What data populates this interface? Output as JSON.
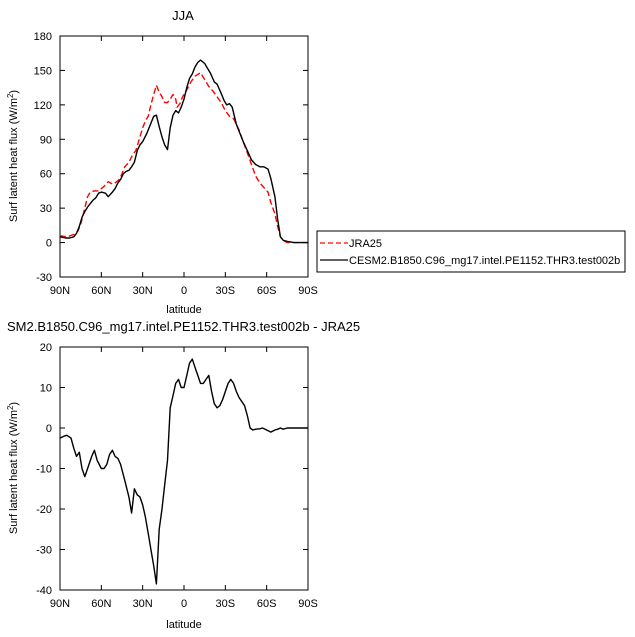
{
  "chart_data": [
    {
      "type": "line",
      "title": "JJA",
      "xlabel": "latitude",
      "ylabel_main": "Surf latent heat flux (W/m",
      "ylabel_sup": "2",
      "ylabel_close": ")",
      "xlim": [
        90,
        -90
      ],
      "ylim": [
        -30,
        180
      ],
      "x_ticks": [
        {
          "v": 90,
          "label": "90N"
        },
        {
          "v": 60,
          "label": "60N"
        },
        {
          "v": 30,
          "label": "30N"
        },
        {
          "v": 0,
          "label": "0"
        },
        {
          "v": -30,
          "label": "30S"
        },
        {
          "v": -60,
          "label": "60S"
        },
        {
          "v": -90,
          "label": "90S"
        }
      ],
      "y_ticks": [
        -30,
        0,
        30,
        60,
        90,
        120,
        150,
        180
      ],
      "grid": false,
      "legend": "right",
      "series": [
        {
          "name": "JRA25",
          "color": "#ff0000",
          "dash": "dashed",
          "points": [
            [
              90,
              6
            ],
            [
              85,
              5
            ],
            [
              80,
              7
            ],
            [
              77,
              10
            ],
            [
              75,
              16
            ],
            [
              72,
              30
            ],
            [
              70,
              40
            ],
            [
              68,
              44
            ],
            [
              65,
              45
            ],
            [
              62,
              45
            ],
            [
              58,
              49
            ],
            [
              55,
              53
            ],
            [
              52,
              51
            ],
            [
              50,
              52
            ],
            [
              47,
              55
            ],
            [
              45,
              60
            ],
            [
              43,
              66
            ],
            [
              40,
              70
            ],
            [
              37,
              77
            ],
            [
              35,
              80
            ],
            [
              32,
              92
            ],
            [
              30,
              100
            ],
            [
              28,
              106
            ],
            [
              26,
              110
            ],
            [
              24,
              120
            ],
            [
              22,
              129
            ],
            [
              20,
              137
            ],
            [
              18,
              131
            ],
            [
              16,
              127
            ],
            [
              14,
              122
            ],
            [
              12,
              122
            ],
            [
              10,
              125
            ],
            [
              8,
              129
            ],
            [
              6,
              125
            ],
            [
              5,
              118
            ],
            [
              3,
              121
            ],
            [
              1,
              127
            ],
            [
              -2,
              133
            ],
            [
              -5,
              140
            ],
            [
              -8,
              145
            ],
            [
              -12,
              148
            ],
            [
              -15,
              142
            ],
            [
              -18,
              136
            ],
            [
              -21,
              132
            ],
            [
              -24,
              127
            ],
            [
              -27,
              122
            ],
            [
              -30,
              115
            ],
            [
              -33,
              110
            ],
            [
              -36,
              108
            ],
            [
              -40,
              98
            ],
            [
              -43,
              88
            ],
            [
              -46,
              78
            ],
            [
              -49,
              68
            ],
            [
              -52,
              58
            ],
            [
              -55,
              52
            ],
            [
              -58,
              48
            ],
            [
              -61,
              44
            ],
            [
              -63,
              35
            ],
            [
              -66,
              25
            ],
            [
              -68,
              14
            ],
            [
              -70,
              5
            ],
            [
              -72,
              2
            ],
            [
              -75,
              0
            ],
            [
              -80,
              0
            ],
            [
              -85,
              0
            ],
            [
              -90,
              0
            ]
          ]
        },
        {
          "name": "CESM2.B1850.C96_mg17.intel.PE1152.THR3.test002b",
          "color": "#000000",
          "dash": "solid",
          "points": [
            [
              90,
              5
            ],
            [
              86,
              4
            ],
            [
              83,
              4
            ],
            [
              80,
              5
            ],
            [
              78,
              8
            ],
            [
              76,
              14
            ],
            [
              74,
              22
            ],
            [
              72,
              27
            ],
            [
              70,
              31
            ],
            [
              68,
              34
            ],
            [
              66,
              37
            ],
            [
              64,
              39
            ],
            [
              62,
              43
            ],
            [
              60,
              44
            ],
            [
              57,
              43
            ],
            [
              55,
              40
            ],
            [
              52,
              44
            ],
            [
              50,
              47
            ],
            [
              48,
              52
            ],
            [
              46,
              55
            ],
            [
              44,
              60
            ],
            [
              42,
              62
            ],
            [
              40,
              63
            ],
            [
              38,
              66
            ],
            [
              36,
              70
            ],
            [
              34,
              80
            ],
            [
              32,
              85
            ],
            [
              30,
              88
            ],
            [
              27,
              95
            ],
            [
              24,
              104
            ],
            [
              22,
              110
            ],
            [
              20,
              111
            ],
            [
              18,
              101
            ],
            [
              16,
              92
            ],
            [
              14,
              85
            ],
            [
              12,
              81
            ],
            [
              10,
              100
            ],
            [
              8,
              111
            ],
            [
              6,
              115
            ],
            [
              4,
              113
            ],
            [
              2,
              118
            ],
            [
              0,
              125
            ],
            [
              -2,
              135
            ],
            [
              -4,
              143
            ],
            [
              -6,
              147
            ],
            [
              -8,
              153
            ],
            [
              -10,
              157
            ],
            [
              -12,
              159
            ],
            [
              -15,
              156
            ],
            [
              -17,
              152
            ],
            [
              -19,
              148
            ],
            [
              -22,
              140
            ],
            [
              -24,
              138
            ],
            [
              -27,
              130
            ],
            [
              -29,
              124
            ],
            [
              -31,
              120
            ],
            [
              -33,
              121
            ],
            [
              -35,
              118
            ],
            [
              -38,
              103
            ],
            [
              -40,
              97
            ],
            [
              -43,
              88
            ],
            [
              -46,
              80
            ],
            [
              -49,
              72
            ],
            [
              -52,
              68
            ],
            [
              -55,
              66
            ],
            [
              -58,
              66
            ],
            [
              -61,
              64
            ],
            [
              -63,
              56
            ],
            [
              -66,
              40
            ],
            [
              -68,
              20
            ],
            [
              -70,
              5
            ],
            [
              -72,
              2
            ],
            [
              -75,
              1
            ],
            [
              -80,
              0
            ],
            [
              -85,
              0
            ],
            [
              -90,
              0
            ]
          ]
        }
      ]
    },
    {
      "type": "line",
      "title": "SM2.B1850.C96_mg17.intel.PE1152.THR3.test002b - JRA25",
      "xlabel": "latitude",
      "ylabel_main": "Surf latent heat flux (W/m",
      "ylabel_sup": "2",
      "ylabel_close": ")",
      "xlim": [
        90,
        -90
      ],
      "ylim": [
        -40,
        20
      ],
      "x_ticks": [
        {
          "v": 90,
          "label": "90N"
        },
        {
          "v": 60,
          "label": "60N"
        },
        {
          "v": 30,
          "label": "30N"
        },
        {
          "v": 0,
          "label": "0"
        },
        {
          "v": -30,
          "label": "30S"
        },
        {
          "v": -60,
          "label": "60S"
        },
        {
          "v": -90,
          "label": "90S"
        }
      ],
      "y_ticks": [
        -40,
        -30,
        -20,
        -10,
        0,
        10,
        20
      ],
      "grid": false,
      "series": [
        {
          "color": "#000000",
          "dash": "solid",
          "points": [
            [
              90,
              -2.5
            ],
            [
              87,
              -2
            ],
            [
              85,
              -1.8
            ],
            [
              82,
              -2.5
            ],
            [
              80,
              -5
            ],
            [
              78,
              -7
            ],
            [
              76,
              -6
            ],
            [
              74,
              -10
            ],
            [
              72,
              -12
            ],
            [
              70,
              -10
            ],
            [
              67,
              -7
            ],
            [
              65,
              -5.5
            ],
            [
              63,
              -8
            ],
            [
              60,
              -10
            ],
            [
              58,
              -10
            ],
            [
              56,
              -9
            ],
            [
              54,
              -6.5
            ],
            [
              52,
              -5.5
            ],
            [
              50,
              -7
            ],
            [
              48,
              -7.5
            ],
            [
              46,
              -9
            ],
            [
              43,
              -13
            ],
            [
              40,
              -17
            ],
            [
              38,
              -21
            ],
            [
              36,
              -15
            ],
            [
              34,
              -16.5
            ],
            [
              32,
              -17
            ],
            [
              30,
              -19
            ],
            [
              28,
              -22
            ],
            [
              26,
              -26
            ],
            [
              24,
              -30
            ],
            [
              22,
              -34
            ],
            [
              20,
              -38.5
            ],
            [
              18,
              -25
            ],
            [
              16,
              -20
            ],
            [
              14,
              -14
            ],
            [
              12,
              -8
            ],
            [
              10,
              5
            ],
            [
              8,
              8
            ],
            [
              6,
              11
            ],
            [
              4,
              12
            ],
            [
              2,
              10
            ],
            [
              0,
              10
            ],
            [
              -2,
              13
            ],
            [
              -4,
              16
            ],
            [
              -6,
              17
            ],
            [
              -8,
              15
            ],
            [
              -10,
              13
            ],
            [
              -12,
              11
            ],
            [
              -14,
              11
            ],
            [
              -16,
              12
            ],
            [
              -18,
              13
            ],
            [
              -20,
              9
            ],
            [
              -22,
              6
            ],
            [
              -24,
              5
            ],
            [
              -26,
              5.5
            ],
            [
              -28,
              7
            ],
            [
              -30,
              9
            ],
            [
              -32,
              11
            ],
            [
              -34,
              12
            ],
            [
              -36,
              11
            ],
            [
              -38,
              9
            ],
            [
              -40,
              7.5
            ],
            [
              -42,
              6.5
            ],
            [
              -44,
              5.5
            ],
            [
              -46,
              3
            ],
            [
              -48,
              0
            ],
            [
              -50,
              -0.5
            ],
            [
              -52,
              -0.3
            ],
            [
              -55,
              -0.2
            ],
            [
              -57,
              0
            ],
            [
              -60,
              -0.5
            ],
            [
              -63,
              -1
            ],
            [
              -66,
              -0.5
            ],
            [
              -68,
              -0.3
            ],
            [
              -70,
              0
            ],
            [
              -72,
              -0.3
            ],
            [
              -75,
              0
            ],
            [
              -80,
              0
            ],
            [
              -85,
              0
            ],
            [
              -90,
              0
            ]
          ]
        }
      ]
    }
  ]
}
